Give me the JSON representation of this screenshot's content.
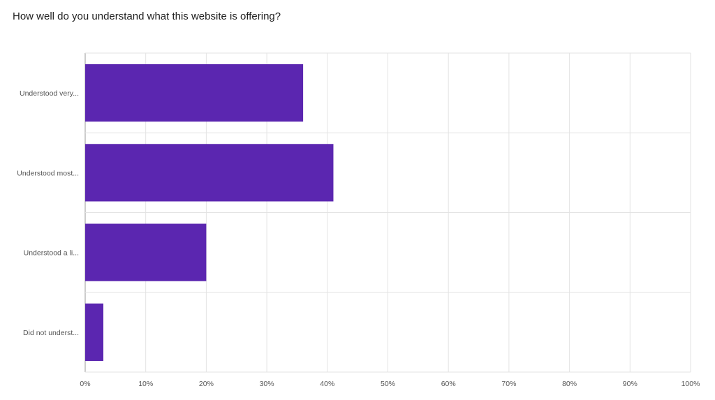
{
  "chart_data": {
    "type": "bar",
    "orientation": "horizontal",
    "title": "How well do you understand what this website is offering?",
    "categories": [
      "Understood very...",
      "Understood most...",
      "Understood a li...",
      "Did not underst..."
    ],
    "values": [
      36,
      41,
      20,
      3
    ],
    "unit": "%",
    "xlim": [
      0,
      100
    ],
    "ticks": [
      "0%",
      "10%",
      "20%",
      "30%",
      "40%",
      "50%",
      "60%",
      "70%",
      "80%",
      "90%",
      "100%"
    ],
    "grid": true,
    "legend": "none",
    "bar_color": "#5b26b0",
    "grid_color": "#e3e3e3"
  }
}
